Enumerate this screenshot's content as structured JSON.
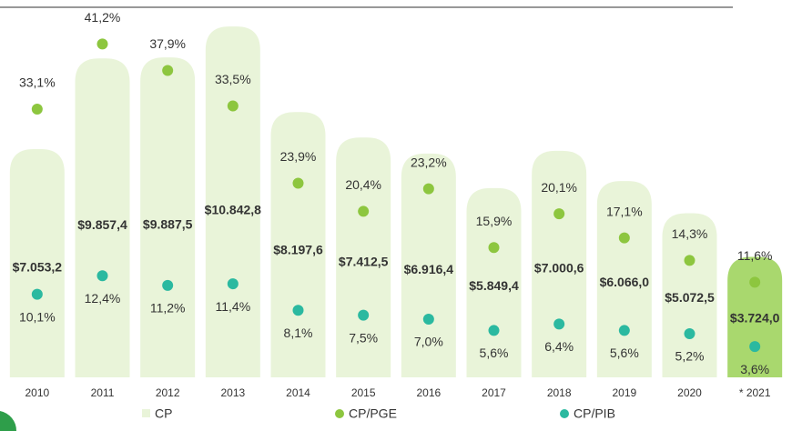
{
  "chart_data": {
    "type": "bar_dots",
    "categories": [
      "2010",
      "2011",
      "2012",
      "2013",
      "2014",
      "2015",
      "2016",
      "2017",
      "2018",
      "2019",
      "2020",
      "* 2021"
    ],
    "ylim": [
      0,
      11100
    ],
    "y2lim": [
      0,
      44.4
    ],
    "series": [
      {
        "name": "CP",
        "color": "#e9f4d9",
        "colors": [
          "#e9f4d9",
          "#e9f4d9",
          "#e9f4d9",
          "#e9f4d9",
          "#e9f4d9",
          "#e9f4d9",
          "#e9f4d9",
          "#e9f4d9",
          "#e9f4d9",
          "#e9f4d9",
          "#e9f4d9",
          "#a9d86e"
        ],
        "values": [
          7053.2,
          9857.4,
          9887.5,
          10842.8,
          8197.6,
          7412.5,
          6916.4,
          5849.4,
          7000.6,
          6066.0,
          5072.5,
          3724.0
        ],
        "value_labels": [
          "$7.053,2",
          "$9.857,4",
          "$9.887,5",
          "$10.842,8",
          "$8.197,6",
          "$7.412,5",
          "$6.916,4",
          "$5.849,4",
          "$7.000,6",
          "$6.066,0",
          "$5.072,5",
          "$3.724,0"
        ]
      },
      {
        "name": "CP/PGE",
        "color": "#8dc63f",
        "axis": "y2",
        "values": [
          33.1,
          41.2,
          37.9,
          33.5,
          23.9,
          20.4,
          23.2,
          15.9,
          20.1,
          17.1,
          14.3,
          11.6
        ],
        "value_labels": [
          "33,1%",
          "41,2%",
          "37,9%",
          "33,5%",
          "23,9%",
          "20,4%",
          "23,2%",
          "15,9%",
          "20,1%",
          "17,1%",
          "14,3%",
          "11,6%"
        ]
      },
      {
        "name": "CP/PIB",
        "color": "#2bb9a0",
        "axis": "y2",
        "values": [
          10.1,
          12.4,
          11.2,
          11.4,
          8.1,
          7.5,
          7.0,
          5.6,
          6.4,
          5.6,
          5.2,
          3.6
        ],
        "value_labels": [
          "10,1%",
          "12,4%",
          "11,2%",
          "11,4%",
          "8,1%",
          "7,5%",
          "7,0%",
          "5,6%",
          "6,4%",
          "5,6%",
          "5,2%",
          "3,6%"
        ]
      }
    ]
  }
}
